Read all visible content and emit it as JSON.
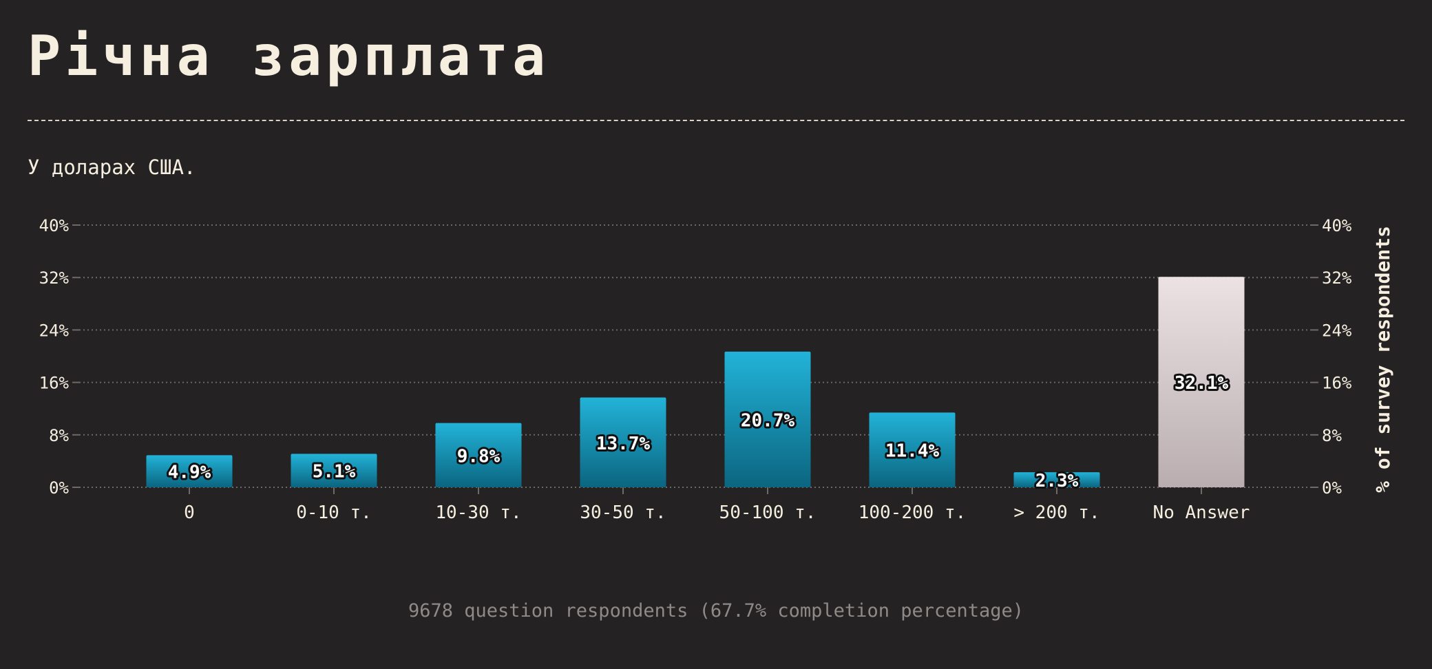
{
  "header": {
    "title": "Річна зарплата",
    "subtitle": "У доларах США."
  },
  "footer": {
    "note": "9678 question respondents (67.7% completion percentage)"
  },
  "chart_data": {
    "type": "bar",
    "categories": [
      "0",
      "0-10 т.",
      "10-30 т.",
      "30-50 т.",
      "50-100 т.",
      "100-200 т.",
      "> 200 т.",
      "No Answer"
    ],
    "values": [
      4.9,
      5.1,
      9.8,
      13.7,
      20.7,
      11.4,
      2.3,
      32.1
    ],
    "value_labels": [
      "4.9%",
      "5.1%",
      "9.8%",
      "13.7%",
      "20.7%",
      "11.4%",
      "2.3%",
      "32.1%"
    ],
    "ylim": [
      0,
      40
    ],
    "yticks": [
      "0%",
      "8%",
      "16%",
      "24%",
      "32%",
      "40%"
    ],
    "ylabel": "% of survey respondents",
    "grid": true,
    "colors": {
      "bar_top": "#22b3d8",
      "bar_bottom": "#0b6580",
      "na_top": "#ece2e4",
      "na_bottom": "#b9adb0",
      "grid": "#6e6a68",
      "axis_text": "#f6efe0"
    }
  }
}
